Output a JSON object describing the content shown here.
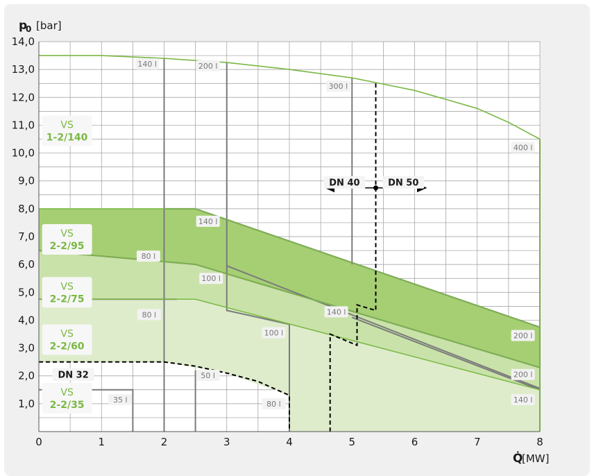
{
  "chart_data": {
    "type": "area",
    "xlabel": {
      "symbol": "Q̇",
      "unit": "[MW]"
    },
    "ylabel": {
      "symbol": "p₀",
      "unit": "[bar]"
    },
    "xlim": [
      0,
      8
    ],
    "ylim": [
      0,
      14
    ],
    "x_ticks": [
      0,
      1,
      2,
      3,
      4,
      5,
      6,
      7,
      8
    ],
    "y_ticks": [
      "1,0",
      "2,0",
      "3,0",
      "4,0",
      "5,0",
      "6,0",
      "7,0",
      "8,0",
      "9,0",
      "10,0",
      "11,0",
      "12,0",
      "13,0",
      "14,0"
    ],
    "grid": true,
    "colors": {
      "band_dark": "#a6cf74",
      "band_mid": "#c9e2a9",
      "band_light": "#deeccb",
      "line_green": "#7ab844",
      "line_grey": "#7a7a7a",
      "dashed": "#000000"
    },
    "bands": [
      {
        "name": "VS 2-2/95",
        "boundary_top": [
          [
            0,
            8.0
          ],
          [
            2.5,
            8.0
          ],
          [
            8,
            3.75
          ]
        ],
        "boundary_bottom": [
          [
            8,
            2.3
          ],
          [
            2.5,
            6.0
          ],
          [
            0,
            6.5
          ]
        ]
      },
      {
        "name": "VS 2-2/75",
        "boundary_top": [
          [
            0,
            6.5
          ],
          [
            2.5,
            6.0
          ],
          [
            8,
            2.3
          ]
        ],
        "boundary_bottom": [
          [
            8,
            1.5
          ],
          [
            2.5,
            4.75
          ],
          [
            0,
            4.75
          ]
        ]
      },
      {
        "name": "VS 2-2/60",
        "boundary_top": [
          [
            0,
            4.75
          ],
          [
            2.5,
            4.75
          ],
          [
            8,
            1.5
          ]
        ],
        "boundary_bottom": [
          [
            8,
            0
          ],
          [
            4,
            0
          ],
          [
            4,
            1.3
          ],
          [
            3,
            2.1
          ],
          [
            2,
            2.5
          ],
          [
            0,
            2.5
          ]
        ]
      }
    ],
    "curves": [
      {
        "name": "VS 1-2/140",
        "points": [
          [
            0,
            13.5
          ],
          [
            1,
            13.5
          ],
          [
            2,
            13.4
          ],
          [
            3,
            13.25
          ],
          [
            4,
            13.0
          ],
          [
            5,
            12.7
          ],
          [
            6,
            12.25
          ],
          [
            7,
            11.6
          ],
          [
            7.5,
            11.1
          ],
          [
            8,
            10.5
          ]
        ]
      }
    ],
    "vessel_lines": [
      {
        "label": "140 l",
        "points": [
          [
            2,
            13.4
          ],
          [
            2,
            0
          ]
        ]
      },
      {
        "label": "200 l",
        "points": [
          [
            3,
            13.25
          ],
          [
            3,
            4.35
          ],
          [
            4,
            3.85
          ],
          [
            4,
            0
          ]
        ]
      },
      {
        "label": "300 l",
        "points": [
          [
            5,
            12.7
          ],
          [
            5,
            6.0
          ]
        ]
      },
      {
        "label": "400 l",
        "points": [
          [
            8,
            10.5
          ],
          [
            8,
            0
          ]
        ]
      },
      {
        "label": "35 l",
        "points": [
          [
            0,
            1.5
          ],
          [
            1.5,
            1.5
          ],
          [
            1.5,
            0
          ]
        ]
      },
      {
        "label": "50 l",
        "points": [
          [
            2.5,
            0
          ],
          [
            2.5,
            2.2
          ]
        ]
      },
      {
        "label": "140 l",
        "points": [
          [
            2,
            8.0
          ],
          [
            2.5,
            8.0
          ],
          [
            8,
            3.75
          ]
        ]
      },
      {
        "label": "100 l",
        "points": [
          [
            3,
            5.95
          ],
          [
            8,
            1.55
          ]
        ]
      },
      {
        "label": "80 l",
        "points": [
          [
            0,
            6.5
          ],
          [
            2.5,
            6.0
          ],
          [
            8,
            2.3
          ]
        ]
      },
      {
        "label": "80 l",
        "points": [
          [
            0,
            4.75
          ],
          [
            2.2,
            4.75
          ]
        ]
      },
      {
        "label": "100 l",
        "points": [
          [
            4,
            3.85
          ],
          [
            4,
            0
          ]
        ]
      },
      {
        "label": "80 l",
        "points": [
          [
            4,
            1.3
          ],
          [
            4,
            0
          ]
        ]
      },
      {
        "label": "140 l",
        "points": [
          [
            5,
            4.1
          ],
          [
            8,
            1.5
          ]
        ]
      },
      {
        "label": "200 l",
        "points": [
          [
            8,
            3.75
          ],
          [
            8,
            2.3
          ]
        ]
      },
      {
        "label": "200 l",
        "points": [
          [
            8,
            2.3
          ],
          [
            8,
            1.5
          ]
        ]
      },
      {
        "label": "140 l",
        "points": [
          [
            8,
            1.5
          ],
          [
            8,
            0
          ]
        ]
      }
    ],
    "dashed_lines": [
      {
        "name": "DN 32 boundary",
        "points": [
          [
            0,
            2.5
          ],
          [
            2,
            2.5
          ],
          [
            2.5,
            2.35
          ],
          [
            3,
            2.1
          ],
          [
            3.5,
            1.8
          ],
          [
            3.9,
            1.4
          ],
          [
            4,
            1.3
          ],
          [
            4,
            0
          ]
        ]
      },
      {
        "name": "DN 40/50 boundary",
        "points": [
          [
            4.65,
            0
          ],
          [
            4.65,
            3.5
          ],
          [
            5.08,
            3.1
          ],
          [
            5.08,
            4.55
          ],
          [
            5.38,
            4.35
          ],
          [
            5.38,
            12.55
          ]
        ]
      }
    ],
    "zone_labels": [
      {
        "line1": "VS",
        "line2": "1-2/140"
      },
      {
        "line1": "VS",
        "line2": "2-2/95"
      },
      {
        "line1": "VS",
        "line2": "2-2/75"
      },
      {
        "line1": "VS",
        "line2": "2-2/60"
      },
      {
        "line1": "VS",
        "line2": "2-2/35"
      }
    ],
    "dn_labels": [
      "DN 40",
      "DN 50",
      "DN 32"
    ],
    "value_labels": [
      "140 l",
      "200 l",
      "300 l",
      "400 l",
      "140 l",
      "80 l",
      "100 l",
      "80 l",
      "140 l",
      "100 l",
      "200 l",
      "50 l",
      "200 l",
      "35 l",
      "80 l",
      "140 l"
    ]
  }
}
